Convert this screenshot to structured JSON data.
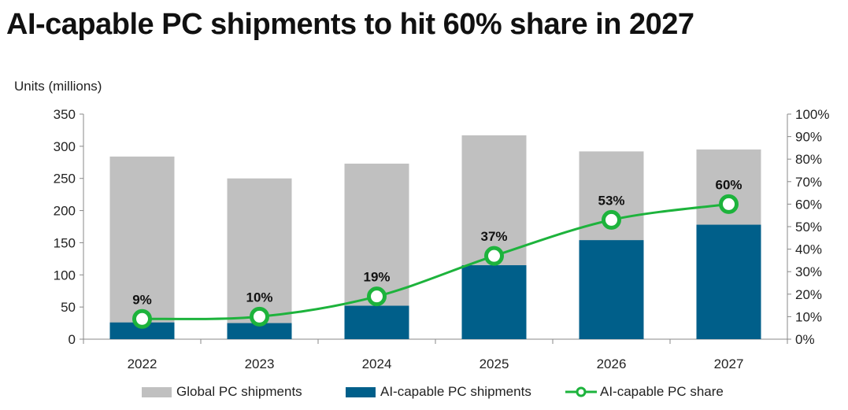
{
  "title": "AI-capable PC shipments to hit 60% share in 2027",
  "units_label": "Units (millions)",
  "colors": {
    "global": "#c0c0c0",
    "ai": "#005f8a",
    "share": "#1db33c",
    "axis": "#888888"
  },
  "chart_data": {
    "type": "bar",
    "title": "AI-capable PC shipments to hit 60% share in 2027",
    "ylabel": "Units (millions)",
    "ylim": [
      0,
      350
    ],
    "y2lim": [
      0,
      100
    ],
    "categories": [
      "2022",
      "2023",
      "2024",
      "2025",
      "2026",
      "2027"
    ],
    "y_ticks": [
      "0",
      "50",
      "100",
      "150",
      "200",
      "250",
      "300",
      "350"
    ],
    "y2_ticks": [
      "0%",
      "10%",
      "20%",
      "30%",
      "40%",
      "50%",
      "60%",
      "70%",
      "80%",
      "90%",
      "100%"
    ],
    "series": [
      {
        "name": "Global PC shipments",
        "type": "bar",
        "values": [
          284,
          250,
          273,
          317,
          292,
          295
        ]
      },
      {
        "name": "AI-capable PC shipments",
        "type": "bar",
        "values": [
          26,
          25,
          52,
          115,
          154,
          178
        ]
      },
      {
        "name": "AI-capable PC share",
        "type": "line",
        "axis": "right",
        "values": [
          9,
          10,
          19,
          37,
          53,
          60
        ],
        "labels": [
          "9%",
          "10%",
          "19%",
          "37%",
          "53%",
          "60%"
        ]
      }
    ],
    "legend": "bottom"
  }
}
